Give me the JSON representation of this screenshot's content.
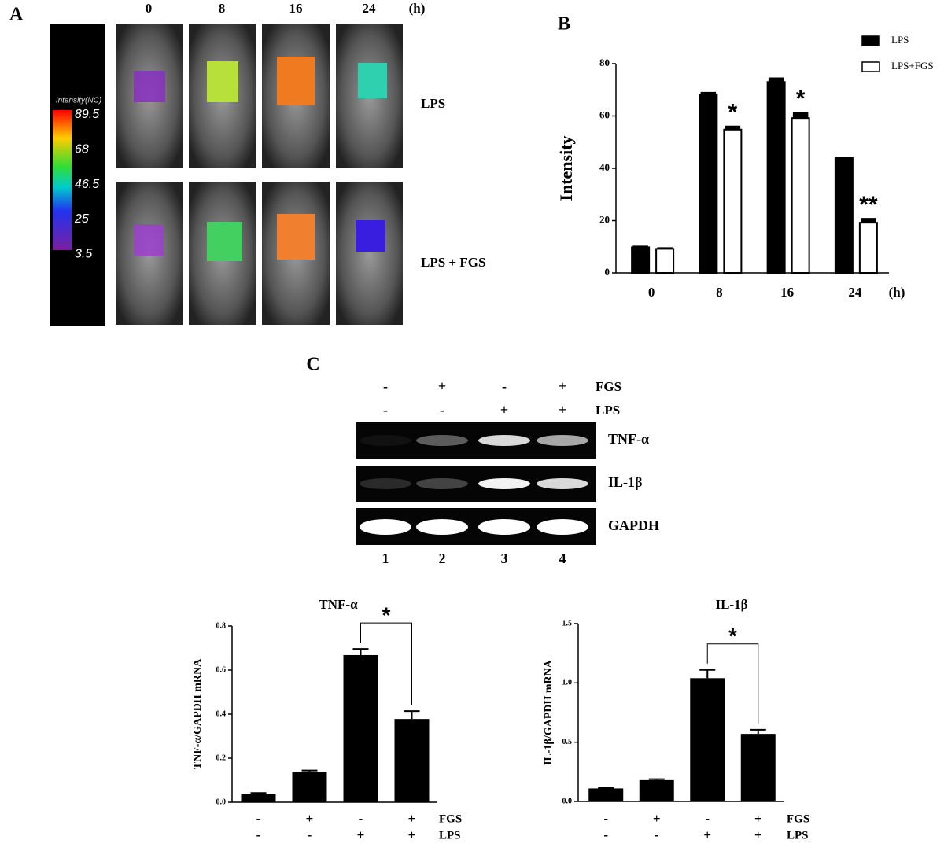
{
  "panel_a": {
    "label": "A",
    "time_labels": [
      "0",
      "8",
      "16",
      "24"
    ],
    "time_unit": "(h)",
    "row_labels": [
      "LPS",
      "LPS + FGS"
    ],
    "colorbar": {
      "title": "Intensity(NC)",
      "ticks": [
        "89.5",
        "68",
        "46.5",
        "25",
        "3.5"
      ]
    }
  },
  "panel_c": {
    "label": "C",
    "treatment_rows": [
      {
        "name": "FGS",
        "signs": [
          "-",
          "+",
          "-",
          "+"
        ]
      },
      {
        "name": "LPS",
        "signs": [
          "-",
          "-",
          "+",
          "+"
        ]
      }
    ],
    "bands": [
      "TNF-α",
      "IL-1β",
      "GAPDH"
    ],
    "lanes": [
      "1",
      "2",
      "3",
      "4"
    ]
  },
  "chart_data": [
    {
      "type": "grouped-bar",
      "panel_label": "B",
      "categories": [
        "0",
        "8",
        "16",
        "24"
      ],
      "x_unit": "(h)",
      "ylabel": "Intensity",
      "ylim": [
        0,
        80
      ],
      "yticks": [
        0,
        20,
        40,
        60,
        80
      ],
      "legend": "upper right",
      "series": [
        {
          "name": "LPS",
          "color": "#000000",
          "values": [
            9.8,
            68.2,
            73,
            43.9
          ],
          "errors": [
            0.4,
            0.8,
            1.5,
            0.4
          ]
        },
        {
          "name": "LPS+FGS",
          "color": "#ffffff",
          "values": [
            9.2,
            54.8,
            59.2,
            19.2
          ],
          "errors": [
            0.4,
            1.3,
            2.1,
            1.6
          ],
          "annotations": [
            null,
            "*",
            "*",
            "**"
          ]
        }
      ]
    },
    {
      "type": "bar",
      "title": "TNF-α",
      "ylabel": "TNF-α/GAPDH mRNA",
      "ylim": [
        0,
        0.8
      ],
      "yticks": [
        {
          "value": 0,
          "label": "0.0"
        },
        0.2,
        0.4,
        0.6,
        0.8
      ],
      "color": "#000000",
      "values": [
        0.039,
        0.139,
        0.668,
        0.378
      ],
      "errors": [
        0.003,
        0.005,
        0.028,
        0.036
      ],
      "significance": "*",
      "treatment_rows": [
        {
          "name": "FGS",
          "signs": [
            "-",
            "+",
            "-",
            "+"
          ]
        },
        {
          "name": "LPS",
          "signs": [
            "-",
            "-",
            "+",
            "+"
          ]
        }
      ]
    },
    {
      "type": "bar",
      "title": "IL-1β",
      "ylabel": "IL-1β/GAPDH mRNA",
      "ylim": [
        0,
        1.5
      ],
      "yticks": [
        {
          "value": 0,
          "label": "0.0"
        },
        0.5,
        {
          "value": 1,
          "label": "1.0"
        },
        1.5
      ],
      "color": "#000000",
      "values": [
        0.11,
        0.18,
        1.04,
        0.57
      ],
      "errors": [
        0.005,
        0.008,
        0.07,
        0.035
      ],
      "significance": "*",
      "treatment_rows": [
        {
          "name": "FGS",
          "signs": [
            "-",
            "+",
            "-",
            "+"
          ]
        },
        {
          "name": "LPS",
          "signs": [
            "-",
            "-",
            "+",
            "+"
          ]
        }
      ]
    }
  ]
}
